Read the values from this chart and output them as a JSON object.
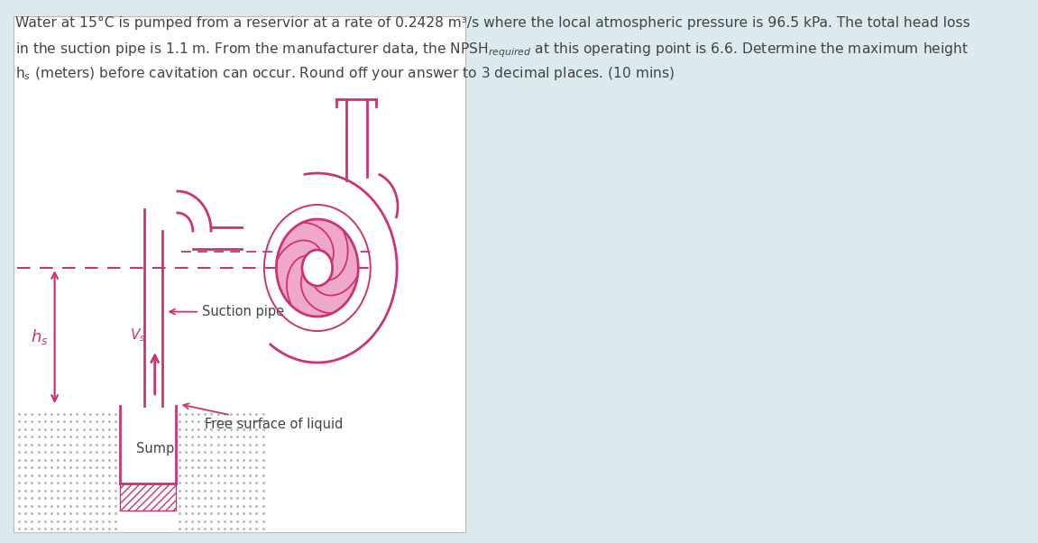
{
  "bg_color": "#dce9ed",
  "diagram_bg": "#ffffff",
  "pump_fill": "#f0a8c8",
  "pipe_color": "#cc3377",
  "dashed_color": "#cc3377",
  "text_color": "#444444",
  "label_hs": "h$_s$",
  "label_vs": "V$_s$",
  "label_suction": "Suction pipe",
  "label_free_surface": "Free surface of liquid",
  "label_sump": "Sump",
  "font_size_title": 11.2,
  "font_size_labels": 10.5,
  "title_line1": "Water at 15°C is pumped from a reservior at a rate of 0.2428 m³/s where the local atmospheric pressure is 96.5 kPa. The total head loss",
  "title_line2": "in the suction pipe is 1.1 m. From the manufacturer data, the NPSH$_{required}$ at this operating point is 6.6. Determine the maximum height",
  "title_line3": "h$_s$ (meters) before cavitation can occur. Round off your answer to 3 decimal places. (10 mins)"
}
